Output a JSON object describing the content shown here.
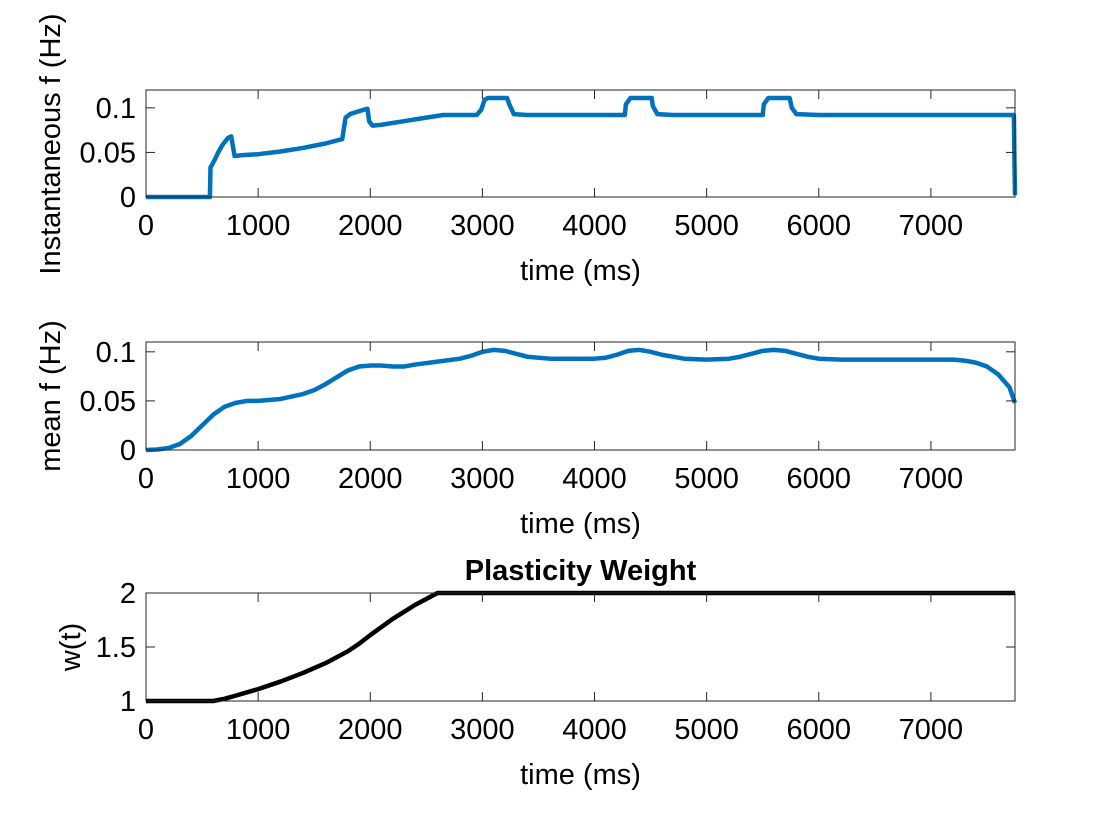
{
  "chart_data": [
    {
      "type": "line",
      "title": "",
      "xlabel": "time (ms)",
      "ylabel": "Instantaneous f (Hz)",
      "xlim": [
        0,
        7750
      ],
      "ylim": [
        0,
        0.12
      ],
      "xticks": [
        0,
        1000,
        2000,
        3000,
        4000,
        5000,
        6000,
        7000
      ],
      "xtick_labels": [
        "0",
        "1000",
        "2000",
        "3000",
        "4000",
        "5000",
        "6000",
        "7000"
      ],
      "yticks": [
        0,
        0.05,
        0.1
      ],
      "ytick_labels": [
        "0",
        "0.05",
        "0.1"
      ],
      "grid": false,
      "series": [
        {
          "color": "#0072BD",
          "x": [
            0,
            570,
            575,
            610,
            640,
            680,
            730,
            760,
            775,
            790,
            860,
            1000,
            1200,
            1400,
            1600,
            1750,
            1760,
            1780,
            1820,
            1870,
            1920,
            1975,
            1990,
            2020,
            2100,
            2300,
            2500,
            2650,
            2800,
            2950,
            2990,
            3020,
            3050,
            3220,
            3240,
            3280,
            3400,
            3600,
            3800,
            4000,
            4200,
            4270,
            4280,
            4320,
            4510,
            4520,
            4560,
            4700,
            4900,
            5100,
            5300,
            5500,
            5510,
            5550,
            5740,
            5760,
            5800,
            6000,
            6500,
            7000,
            7500,
            7740,
            7745,
            7750
          ],
          "y": [
            0,
            0,
            0.033,
            0.041,
            0.049,
            0.058,
            0.066,
            0.068,
            0.057,
            0.046,
            0.047,
            0.048,
            0.051,
            0.055,
            0.06,
            0.065,
            0.073,
            0.089,
            0.093,
            0.095,
            0.097,
            0.099,
            0.085,
            0.08,
            0.081,
            0.085,
            0.089,
            0.092,
            0.092,
            0.092,
            0.098,
            0.109,
            0.111,
            0.111,
            0.104,
            0.093,
            0.092,
            0.092,
            0.092,
            0.092,
            0.092,
            0.092,
            0.104,
            0.111,
            0.111,
            0.102,
            0.093,
            0.092,
            0.092,
            0.092,
            0.092,
            0.092,
            0.104,
            0.111,
            0.111,
            0.1,
            0.093,
            0.092,
            0.092,
            0.092,
            0.092,
            0.092,
            0.04,
            0.002
          ]
        }
      ]
    },
    {
      "type": "line",
      "title": "",
      "xlabel": "time (ms)",
      "ylabel": "mean f (Hz)",
      "xlim": [
        0,
        7750
      ],
      "ylim": [
        0,
        0.11
      ],
      "xticks": [
        0,
        1000,
        2000,
        3000,
        4000,
        5000,
        6000,
        7000
      ],
      "xtick_labels": [
        "0",
        "1000",
        "2000",
        "3000",
        "4000",
        "5000",
        "6000",
        "7000"
      ],
      "yticks": [
        0,
        0.05,
        0.1
      ],
      "ytick_labels": [
        "0",
        "0.05",
        "0.1"
      ],
      "grid": false,
      "series": [
        {
          "color": "#0072BD",
          "x": [
            0,
            100,
            200,
            300,
            400,
            500,
            600,
            700,
            800,
            900,
            1000,
            1200,
            1400,
            1500,
            1600,
            1700,
            1800,
            1900,
            2000,
            2100,
            2200,
            2300,
            2400,
            2600,
            2800,
            2900,
            3000,
            3100,
            3200,
            3300,
            3400,
            3600,
            3800,
            4000,
            4100,
            4200,
            4300,
            4400,
            4500,
            4600,
            4800,
            5000,
            5200,
            5300,
            5400,
            5500,
            5600,
            5700,
            5800,
            5900,
            6000,
            6200,
            6500,
            7000,
            7200,
            7300,
            7400,
            7500,
            7600,
            7700,
            7750
          ],
          "y": [
            0,
            0.0005,
            0.002,
            0.006,
            0.014,
            0.025,
            0.036,
            0.044,
            0.048,
            0.05,
            0.05,
            0.052,
            0.057,
            0.061,
            0.067,
            0.074,
            0.081,
            0.085,
            0.086,
            0.086,
            0.085,
            0.085,
            0.087,
            0.09,
            0.093,
            0.096,
            0.1,
            0.102,
            0.101,
            0.098,
            0.095,
            0.093,
            0.093,
            0.093,
            0.094,
            0.097,
            0.101,
            0.102,
            0.1,
            0.097,
            0.093,
            0.092,
            0.093,
            0.095,
            0.098,
            0.101,
            0.102,
            0.101,
            0.098,
            0.095,
            0.093,
            0.092,
            0.092,
            0.092,
            0.092,
            0.091,
            0.089,
            0.085,
            0.077,
            0.064,
            0.048
          ]
        }
      ]
    },
    {
      "type": "line",
      "title": "Plasticity Weight",
      "xlabel": "time (ms)",
      "ylabel": "w(t)",
      "xlim": [
        0,
        7750
      ],
      "ylim": [
        1,
        2
      ],
      "xticks": [
        0,
        1000,
        2000,
        3000,
        4000,
        5000,
        6000,
        7000
      ],
      "xtick_labels": [
        "0",
        "1000",
        "2000",
        "3000",
        "4000",
        "5000",
        "6000",
        "7000"
      ],
      "yticks": [
        1,
        1.5,
        2
      ],
      "ytick_labels": [
        "1",
        "1.5",
        "2"
      ],
      "grid": false,
      "series": [
        {
          "color": "#000000",
          "x": [
            0,
            600,
            700,
            800,
            1000,
            1200,
            1400,
            1600,
            1800,
            1900,
            2000,
            2200,
            2400,
            2600,
            2650,
            7750
          ],
          "y": [
            1,
            1,
            1.02,
            1.05,
            1.11,
            1.18,
            1.26,
            1.35,
            1.46,
            1.53,
            1.61,
            1.76,
            1.89,
            2,
            2,
            2
          ]
        }
      ]
    }
  ]
}
